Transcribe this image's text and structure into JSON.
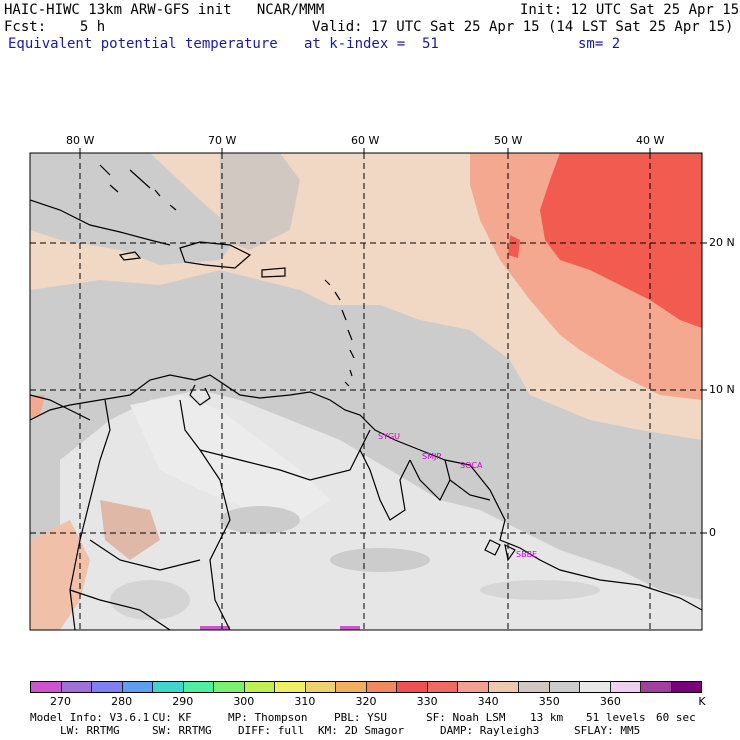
{
  "header": {
    "model": "HAIC-HIWC 13km ARW-GFS init   NCAR/MMM",
    "init": "Init: 12 UTC Sat 25 Apr 15",
    "fcst": "Fcst:    5 h",
    "valid": "Valid: 17 UTC Sat 25 Apr 15 (14 LST Sat 25 Apr 15)",
    "field": "Equivalent potential temperature",
    "level": "at k-index =  51",
    "smoothing": "sm= 2"
  },
  "map": {
    "lon_labels": [
      "80 W",
      "70 W",
      "60 W",
      "50 W",
      "40 W"
    ],
    "lat_labels": [
      "20 N",
      "10 N",
      "0"
    ],
    "cities": [
      "SYGU",
      "SMJP",
      "SOCA",
      "SBBE"
    ]
  },
  "colorbar": {
    "colors": [
      "#cc55cc",
      "#a070d8",
      "#8080f0",
      "#5e9ef0",
      "#3ed6d0",
      "#4cf0a0",
      "#7cf070",
      "#c0f050",
      "#f0f060",
      "#f0d070",
      "#f0b060",
      "#f08860",
      "#f05050",
      "#f06a60",
      "#f4a090",
      "#f0c8b0",
      "#d0c8c0",
      "#cccccc",
      "#e8e8e8",
      "#f0d0f0",
      "#a040a0",
      "#780078"
    ],
    "labels": [
      "270",
      "280",
      "290",
      "300",
      "310",
      "320",
      "330",
      "340",
      "350",
      "360",
      "K"
    ]
  },
  "footer": {
    "line1": [
      "Model Info: V3.6.1",
      "CU: KF",
      "MP: Thompson",
      "PBL: YSU",
      "SF: Noah LSM",
      "13 km",
      "51 levels",
      "60 sec"
    ],
    "line2": [
      "LW: RRTMG",
      "SW: RRTMG",
      "DIFF: full",
      "KM: 2D Smagor",
      "DAMP: Rayleigh3",
      "SFLAY: MM5"
    ]
  }
}
